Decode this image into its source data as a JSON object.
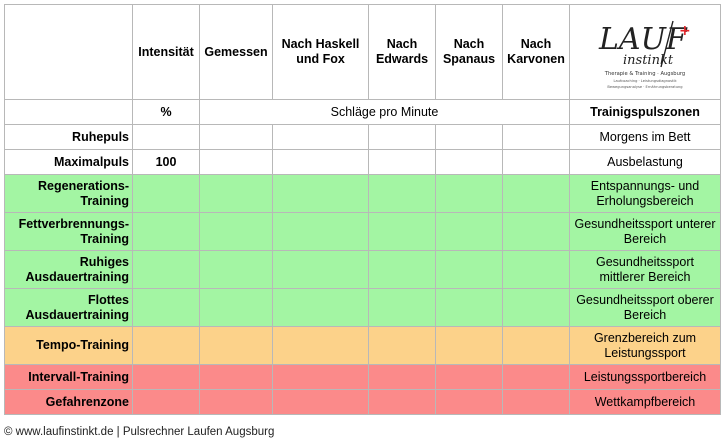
{
  "table": {
    "headers": {
      "intensitaet": "Intensität",
      "gemessen": "Gemessen",
      "haskell": "Nach Haskell und Fox",
      "edwards": "Nach Edwards",
      "spanaus": "Nach Spanaus",
      "karvonen": "Nach Karvonen"
    },
    "logo": {
      "line1": "LAUF",
      "line2": "instinkt",
      "tagline": "Therapie & Training · Augsburg",
      "small1": "Laufcoaching · Leistungsdiagnostik",
      "small2": "Bewegungsanalyse · Ernährungsberatung"
    },
    "units": {
      "percent": "%",
      "bpm": "Schläge pro Minute",
      "zones": "Trainigspulszonen"
    },
    "rows": [
      {
        "label": "Ruhepuls",
        "intensity": "",
        "zone": "Morgens im Bett",
        "color": "#ffffff"
      },
      {
        "label": "Maximalpuls",
        "intensity": "100",
        "zone": "Ausbelastung",
        "color": "#ffffff"
      },
      {
        "label": "Regenerations-Training",
        "intensity": "",
        "zone": "Entspannungs- und Erholungsbereich",
        "color": "#a3f5a3"
      },
      {
        "label": "Fettverbrennungs-Training",
        "intensity": "",
        "zone": "Gesundheitssport unterer Bereich",
        "color": "#a3f5a3"
      },
      {
        "label": "Ruhiges Ausdauertraining",
        "intensity": "",
        "zone": "Gesundheitssport mittlerer Bereich",
        "color": "#a3f5a3"
      },
      {
        "label": "Flottes Ausdauertraining",
        "intensity": "",
        "zone": "Gesundheitssport oberer Bereich",
        "color": "#a3f5a3"
      },
      {
        "label": "Tempo-Training",
        "intensity": "",
        "zone": "Grenzbereich zum Leistungssport",
        "color": "#fcd28a"
      },
      {
        "label": "Intervall-Training",
        "intensity": "",
        "zone": "Leistungssportbereich",
        "color": "#fb8a8a"
      },
      {
        "label": "Gefahrenzone",
        "intensity": "",
        "zone": "Wettkampfbereich",
        "color": "#fb8a8a"
      }
    ]
  },
  "footer": "© www.laufinstinkt.de | Pulsrechner Laufen Augsburg"
}
